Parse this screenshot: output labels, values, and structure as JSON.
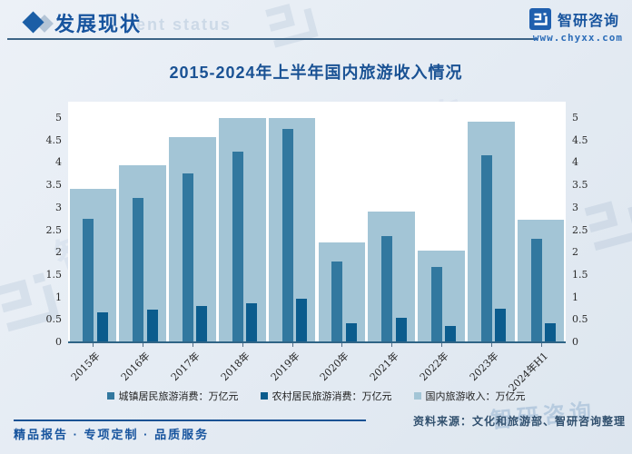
{
  "header": {
    "section_title": "发展现状",
    "section_title_ghost": "ent status",
    "brand_name": "智研咨询",
    "brand_url": "www.chyxx.com"
  },
  "chart_title": "2015-2024年上半年国内旅游收入情况",
  "chart_data": {
    "type": "bar",
    "title": "2015-2024年上半年国内旅游收入情况",
    "categories": [
      "2015年",
      "2016年",
      "2017年",
      "2018年",
      "2019年",
      "2020年",
      "2021年",
      "2022年",
      "2023年",
      "2024年H1"
    ],
    "series": [
      {
        "name": "城镇居民旅游消费：万亿元",
        "color": "#32789f",
        "values": [
          2.76,
          3.22,
          3.77,
          4.26,
          4.75,
          1.8,
          2.36,
          1.69,
          4.18,
          2.31
        ]
      },
      {
        "name": "农村居民旅游消费：万亿元",
        "color": "#0b5c8d",
        "values": [
          0.67,
          0.72,
          0.8,
          0.87,
          0.97,
          0.43,
          0.55,
          0.36,
          0.74,
          0.42
        ]
      },
      {
        "name": "国内旅游收入：万亿元",
        "color": "#a3c5d6",
        "values": [
          3.42,
          3.94,
          4.57,
          5.13,
          5.73,
          2.23,
          2.92,
          2.04,
          4.91,
          2.73
        ]
      }
    ],
    "ylabel": "",
    "xlabel": "",
    "ylim": [
      0,
      5
    ],
    "yticks": [
      0,
      0.5,
      1,
      1.5,
      2,
      2.5,
      3,
      3.5,
      4,
      4.5,
      5
    ],
    "y_axis_sides": "both",
    "grid": false,
    "legend_position": "bottom",
    "bars_clipped_at_ymax": true
  },
  "footer": {
    "tagline": "精品报告 · 专项定制 · 品质服务",
    "source": "资料来源：文化和旅游部、智研咨询整理"
  },
  "watermark": {
    "text": "智研咨询"
  },
  "colors": {
    "accent_blue": "#17549e",
    "bar_urban": "#32789f",
    "bar_rural": "#0b5c8d",
    "bar_total": "#a3c5d6",
    "page_bg": "#e7edf4"
  }
}
